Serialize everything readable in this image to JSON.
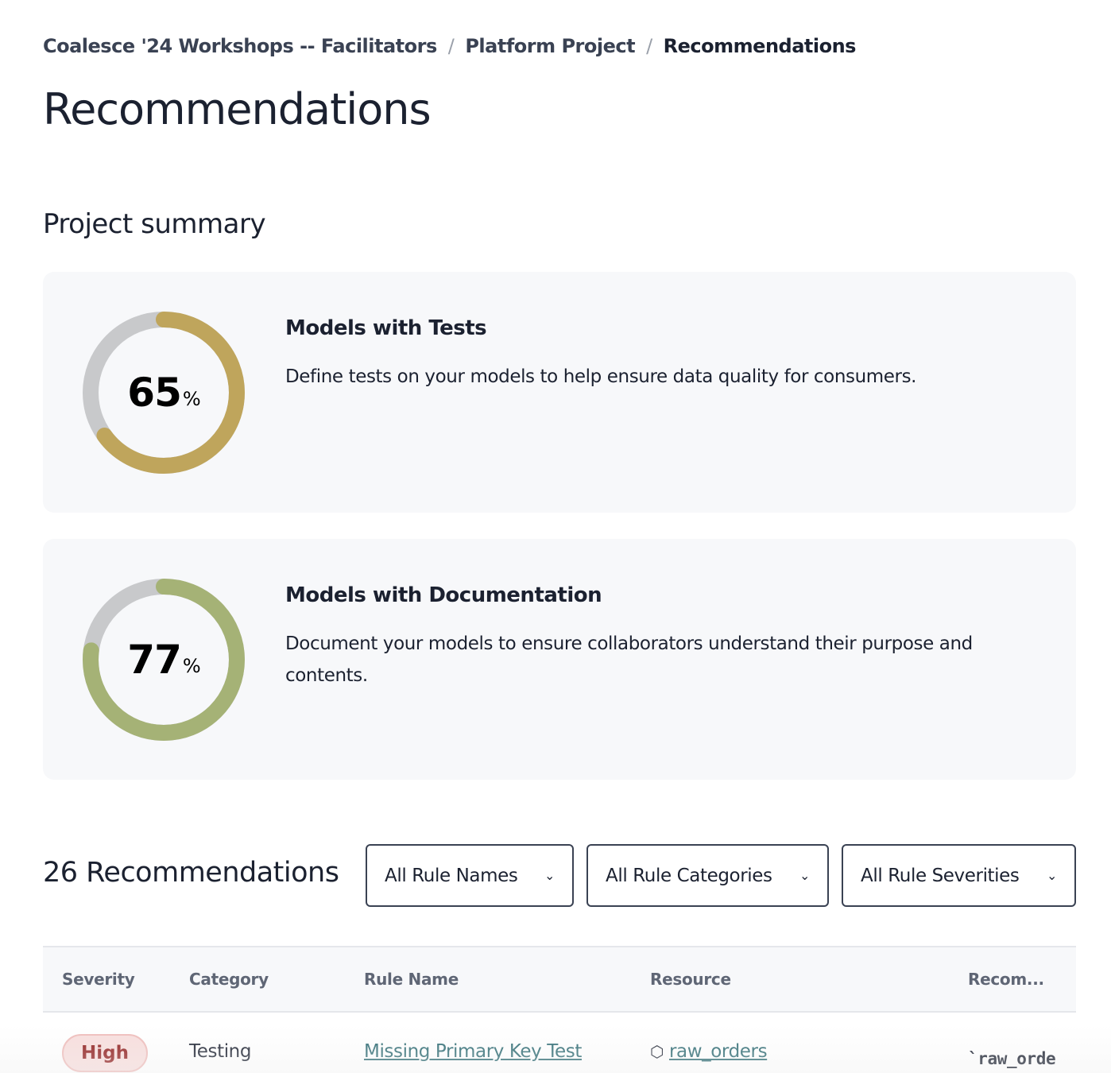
{
  "breadcrumb": [
    "Coalesce '24 Workshops -- Facilitators",
    "Platform Project",
    "Recommendations"
  ],
  "title": "Recommendations",
  "summary": {
    "heading": "Project summary",
    "cards": [
      {
        "title": "Models with Tests",
        "description": "Define tests on your models to help ensure data quality for consumers.",
        "percent": 65,
        "percent_label": "65",
        "unit": "%",
        "color": "#bfa55c"
      },
      {
        "title": "Models with Documentation",
        "description": "Document your models to ensure collaborators understand their purpose and contents.",
        "percent": 77,
        "percent_label": "77",
        "unit": "%",
        "color": "#a5b276"
      }
    ]
  },
  "recommendations": {
    "count_label": "26 Recommendations",
    "filters": [
      "All Rule Names",
      "All Rule Categories",
      "All Rule Severities"
    ],
    "columns": [
      "Severity",
      "Category",
      "Rule Name",
      "Resource",
      "Recom..."
    ],
    "rows": [
      {
        "severity": "High",
        "category": "Testing",
        "rule": "Missing Primary Key Test",
        "resource": "raw_orders",
        "recommendation": "`raw_orde"
      }
    ]
  }
}
